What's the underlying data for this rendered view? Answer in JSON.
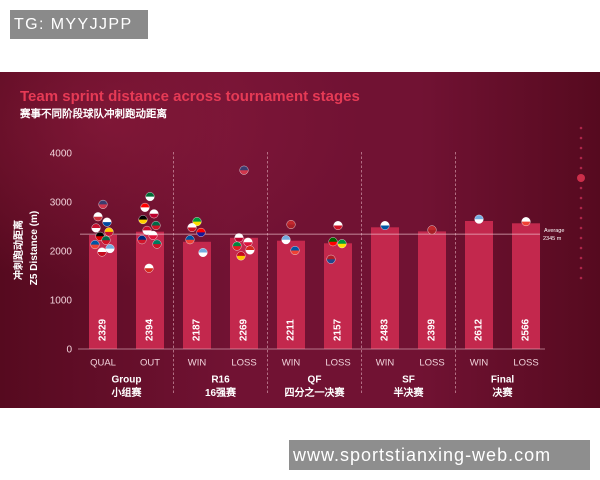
{
  "header_label": "TG: MYYJJPP",
  "watermark": "www.sportstianxing-web.com",
  "colors": {
    "title": "#e63a55",
    "subtitle": "#ffffff",
    "bar": "#c3284d",
    "bar_value_text": "#ffffff",
    "axis_text": "#f1d3db",
    "axis_line": "#e7b7c4",
    "group_text": "#ffffff",
    "average_line": "#f3c9d3",
    "separator": "#d9a3b2",
    "decor": "#b8284f",
    "decor_accent": "#d8324f",
    "panel_dark": "#560a1f",
    "panel_mid": "#711233",
    "panel_glow": "rgba(150,30,66,0.55)",
    "marker_ring": "rgba(255,255,255,0.75)"
  },
  "chart_data": {
    "type": "bar",
    "title": "Team sprint distance across tournament stages",
    "subtitle": "赛事不同阶段球队冲刺跑动距离",
    "ylabel": "Z5 Distance (m)",
    "ylabel_cn": "冲刺跑动距离",
    "ylim": [
      0,
      4000
    ],
    "yticks": [
      0,
      1000,
      2000,
      3000,
      4000
    ],
    "grid": false,
    "legend": "none",
    "average": {
      "label": "Average",
      "value": 2345,
      "text": "2345 m"
    },
    "groups": [
      {
        "name": "Group",
        "name_cn": "小组赛",
        "bars": [
          {
            "category": "QUAL",
            "value": 2329,
            "teams": [
              {
                "value": 2950,
                "colors": [
                  "#3c3b6e",
                  "#d0364c"
                ]
              },
              {
                "value": 2700,
                "colors": [
                  "#ffffff",
                  "#cd2e3a"
                ]
              },
              {
                "value": 2590,
                "colors": [
                  "#ffffff",
                  "#0047a0"
                ]
              },
              {
                "value": 2470,
                "colors": [
                  "#c8102e",
                  "#ffffff"
                ]
              },
              {
                "value": 2390,
                "colors": [
                  "#ffcd00",
                  "#c8102e"
                ]
              },
              {
                "value": 2300,
                "colors": [
                  "#000000",
                  "#dd0000"
                ]
              },
              {
                "value": 2220,
                "colors": [
                  "#006847",
                  "#ce1126"
                ]
              },
              {
                "value": 2130,
                "colors": [
                  "#0055a4",
                  "#ef4135"
                ]
              },
              {
                "value": 2050,
                "colors": [
                  "#74acdf",
                  "#ffffff"
                ]
              },
              {
                "value": 1980,
                "colors": [
                  "#ffffff",
                  "#c60b1e"
                ]
              }
            ]
          },
          {
            "category": "OUT",
            "value": 2394,
            "teams": [
              {
                "value": 3110,
                "colors": [
                  "#006c35",
                  "#ffffff"
                ]
              },
              {
                "value": 2890,
                "colors": [
                  "#ff0000",
                  "#ffffff"
                ]
              },
              {
                "value": 2760,
                "colors": [
                  "#ffffff",
                  "#bc002d"
                ]
              },
              {
                "value": 2640,
                "colors": [
                  "#000000",
                  "#ffce00"
                ]
              },
              {
                "value": 2520,
                "colors": [
                  "#006847",
                  "#ce1126"
                ]
              },
              {
                "value": 2420,
                "colors": [
                  "#c60c30",
                  "#ffffff"
                ]
              },
              {
                "value": 2320,
                "colors": [
                  "#ffffff",
                  "#dc143c"
                ]
              },
              {
                "value": 2230,
                "colors": [
                  "#00247d",
                  "#cf142b"
                ]
              },
              {
                "value": 2140,
                "colors": [
                  "#007a5e",
                  "#ce1126"
                ]
              },
              {
                "value": 1650,
                "colors": [
                  "#ffffff",
                  "#d52b1e"
                ]
              }
            ]
          }
        ]
      },
      {
        "name": "R16",
        "name_cn": "16强赛",
        "bars": [
          {
            "category": "WIN",
            "value": 2187,
            "teams": [
              {
                "value": 2600,
                "colors": [
                  "#009c3b",
                  "#ffdf00"
                ]
              },
              {
                "value": 2480,
                "colors": [
                  "#ffffff",
                  "#ce1124"
                ]
              },
              {
                "value": 2380,
                "colors": [
                  "#ff0000",
                  "#171796"
                ]
              },
              {
                "value": 2230,
                "colors": [
                  "#0055a4",
                  "#ef4135"
                ]
              },
              {
                "value": 1970,
                "colors": [
                  "#74acdf",
                  "#ffffff"
                ]
              }
            ]
          },
          {
            "category": "LOSS",
            "value": 2269,
            "teams": [
              {
                "value": 3650,
                "colors": [
                  "#3c3b6e",
                  "#d0364c"
                ]
              },
              {
                "value": 2270,
                "colors": [
                  "#ffffff",
                  "#bc002d"
                ]
              },
              {
                "value": 2180,
                "colors": [
                  "#ffffff",
                  "#dc143c"
                ]
              },
              {
                "value": 2100,
                "colors": [
                  "#00853f",
                  "#e31b23"
                ]
              },
              {
                "value": 2020,
                "colors": [
                  "#d52b1e",
                  "#ffffff"
                ]
              },
              {
                "value": 1900,
                "colors": [
                  "#c60b1e",
                  "#ffc400"
                ]
              }
            ]
          }
        ]
      },
      {
        "name": "QF",
        "name_cn": "四分之一决赛",
        "bars": [
          {
            "category": "WIN",
            "value": 2211,
            "teams": [
              {
                "value": 2540,
                "colors": [
                  "#c1272d",
                  "#a81e26"
                ]
              },
              {
                "value": 2230,
                "colors": [
                  "#74acdf",
                  "#ffffff"
                ]
              },
              {
                "value": 2010,
                "colors": [
                  "#0055a4",
                  "#ef4135"
                ]
              }
            ]
          },
          {
            "category": "LOSS",
            "value": 2157,
            "teams": [
              {
                "value": 2520,
                "colors": [
                  "#ffffff",
                  "#ce1124"
                ]
              },
              {
                "value": 2190,
                "colors": [
                  "#006600",
                  "#ff0000"
                ]
              },
              {
                "value": 2150,
                "colors": [
                  "#009c3b",
                  "#ffdf00"
                ]
              },
              {
                "value": 1830,
                "colors": [
                  "#ae1c28",
                  "#21468b"
                ]
              }
            ]
          }
        ]
      },
      {
        "name": "SF",
        "name_cn": "半决赛",
        "bars": [
          {
            "category": "WIN",
            "value": 2483,
            "teams": [
              {
                "value": 2520,
                "colors": [
                  "#ffffff",
                  "#0055a4"
                ]
              }
            ]
          },
          {
            "category": "LOSS",
            "value": 2399,
            "teams": [
              {
                "value": 2430,
                "colors": [
                  "#c1272d",
                  "#a81e26"
                ]
              }
            ]
          }
        ]
      },
      {
        "name": "Final",
        "name_cn": "决赛",
        "bars": [
          {
            "category": "WIN",
            "value": 2612,
            "teams": [
              {
                "value": 2650,
                "colors": [
                  "#74acdf",
                  "#ffffff"
                ]
              }
            ]
          },
          {
            "category": "LOSS",
            "value": 2566,
            "teams": [
              {
                "value": 2600,
                "colors": [
                  "#ffffff",
                  "#ef4135"
                ]
              }
            ]
          }
        ]
      }
    ]
  }
}
